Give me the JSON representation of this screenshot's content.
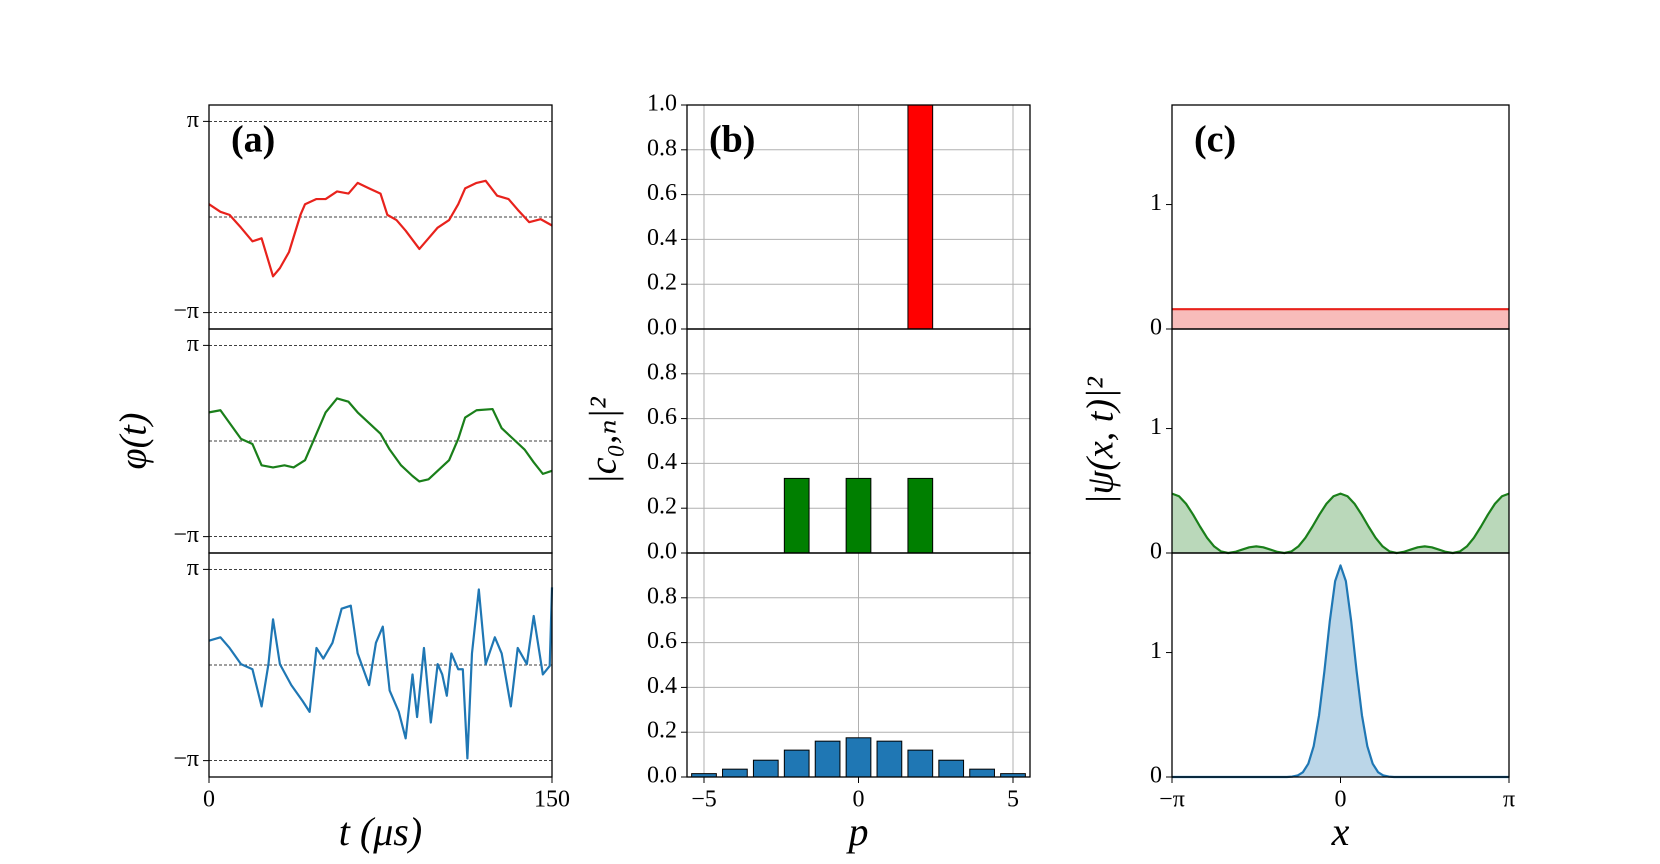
{
  "chart_data": [
    {
      "type": "line",
      "panel_label": "(a)",
      "xlabel": "t (μs)",
      "ylabel": "φ(t)",
      "xlim": [
        0,
        150
      ],
      "xticks": [
        0,
        150
      ],
      "ylim": [
        -3.68,
        3.68
      ],
      "yticks": [
        {
          "value": 3.1416,
          "label": "π"
        },
        {
          "value": -3.1416,
          "label": "−π"
        }
      ],
      "hlines": [
        3.1416,
        0,
        -3.1416
      ],
      "series": [
        {
          "color": "#e8221c",
          "x": [
            0,
            5,
            9,
            14,
            19,
            23,
            28,
            31,
            35,
            40,
            42,
            47,
            51,
            56,
            61,
            65,
            70,
            75,
            78,
            82,
            86,
            92,
            96,
            100,
            105,
            109,
            112,
            117,
            121,
            126,
            131,
            135,
            140,
            145,
            150
          ],
          "values": [
            0.42,
            0.17,
            0.07,
            -0.35,
            -0.8,
            -0.7,
            -1.95,
            -1.68,
            -1.15,
            0.07,
            0.42,
            0.59,
            0.59,
            0.84,
            0.77,
            1.12,
            0.94,
            0.77,
            0.07,
            -0.1,
            -0.45,
            -1.05,
            -0.7,
            -0.35,
            -0.1,
            0.42,
            0.94,
            1.12,
            1.19,
            0.7,
            0.59,
            0.24,
            -0.17,
            -0.07,
            -0.28
          ]
        },
        {
          "color": "#1a7f1a",
          "x": [
            0,
            5,
            9,
            14,
            19,
            23,
            28,
            33,
            37,
            42,
            47,
            51,
            56,
            61,
            65,
            70,
            75,
            79,
            84,
            89,
            92,
            96,
            100,
            105,
            109,
            112,
            117,
            124,
            128,
            133,
            138,
            142,
            146,
            150
          ],
          "values": [
            0.94,
            1.01,
            0.59,
            0.07,
            -0.1,
            -0.8,
            -0.87,
            -0.8,
            -0.87,
            -0.63,
            0.24,
            0.94,
            1.4,
            1.29,
            0.94,
            0.59,
            0.24,
            -0.28,
            -0.8,
            -1.15,
            -1.33,
            -1.26,
            -0.98,
            -0.63,
            0.07,
            0.77,
            1.01,
            1.05,
            0.42,
            0.07,
            -0.28,
            -0.7,
            -1.08,
            -0.98
          ]
        },
        {
          "color": "#1f77b4",
          "x": [
            0,
            5,
            9,
            14,
            19,
            23,
            26,
            28,
            31,
            36,
            41,
            44,
            47,
            50,
            54,
            58,
            62,
            65,
            70,
            73,
            76,
            79,
            83,
            86,
            89,
            91,
            94,
            97,
            100,
            102,
            104,
            106,
            109,
            111,
            113,
            115,
            118,
            121,
            125,
            128,
            132,
            135,
            139,
            142,
            146,
            149,
            150
          ],
          "values": [
            0.8,
            0.91,
            0.56,
            0.03,
            -0.14,
            -1.36,
            0.03,
            1.5,
            0.03,
            -0.66,
            -1.19,
            -1.54,
            0.56,
            0.21,
            0.73,
            1.85,
            1.95,
            0.38,
            -0.66,
            0.73,
            1.26,
            -0.84,
            -1.54,
            -2.41,
            -0.31,
            -1.71,
            0.56,
            -1.89,
            0.03,
            -0.31,
            -1.01,
            0.38,
            -0.14,
            -0.14,
            -3.07,
            0.38,
            2.48,
            0.03,
            0.91,
            0.38,
            -1.36,
            0.56,
            0.03,
            1.61,
            -0.31,
            -0.03,
            2.55
          ]
        }
      ]
    },
    {
      "type": "bar",
      "panel_label": "(b)",
      "xlabel": "p",
      "ylabel": "|c₀,ₙ|²",
      "grid": true,
      "xlim": [
        -5.55,
        5.55
      ],
      "xticks": [
        {
          "value": -5,
          "label": "−5"
        },
        0,
        5
      ],
      "ylim": [
        0,
        1
      ],
      "yticks": [
        {
          "value": 0,
          "label": "0.0"
        },
        {
          "value": 0.2,
          "label": "0.2"
        },
        {
          "value": 0.4,
          "label": "0.4"
        },
        {
          "value": 0.6,
          "label": "0.6"
        },
        {
          "value": 0.8,
          "label": "0.8"
        },
        {
          "value": 1,
          "label": "1.0"
        }
      ],
      "x": [
        -5,
        -4,
        -3,
        -2,
        -1,
        0,
        1,
        2,
        3,
        4,
        5
      ],
      "series": [
        {
          "color": "#ff0000",
          "values": [
            0,
            0,
            0,
            0,
            0,
            0,
            0,
            1,
            0,
            0,
            0
          ]
        },
        {
          "color": "#007f00",
          "values": [
            0,
            0,
            0,
            0.333,
            0,
            0.333,
            0,
            0.333,
            0,
            0,
            0
          ]
        },
        {
          "color": "#1f77b4",
          "values": [
            0.015,
            0.035,
            0.075,
            0.12,
            0.16,
            0.175,
            0.16,
            0.12,
            0.075,
            0.035,
            0.015
          ]
        }
      ]
    },
    {
      "type": "area",
      "panel_label": "(c)",
      "xlabel": "x",
      "ylabel": "|ψ(x, t)|²",
      "xlim": [
        -3.1416,
        3.1416
      ],
      "xticks": [
        {
          "value": -3.1416,
          "label": "−π"
        },
        0,
        {
          "value": 3.1416,
          "label": "π"
        }
      ],
      "ylim": [
        0,
        1.8
      ],
      "yticks": [
        0,
        1
      ],
      "series": [
        {
          "color": "#e8221c",
          "x": [
            -3.1416,
            3.1416
          ],
          "values": [
            0.159,
            0.159
          ]
        },
        {
          "color": "#1a7f1a",
          "x": [
            -3.1416,
            -3.0107,
            -2.8798,
            -2.7489,
            -2.618,
            -2.4871,
            -2.3562,
            -2.2253,
            -2.0944,
            -1.9635,
            -1.8326,
            -1.7017,
            -1.5708,
            -1.4399,
            -1.309,
            -1.1781,
            -1.0472,
            -0.9163,
            -0.7854,
            -0.6545,
            -0.5236,
            -0.3927,
            -0.2618,
            -0.1309,
            0,
            0.1309,
            0.2618,
            0.3927,
            0.5236,
            0.6545,
            0.7854,
            0.9163,
            1.0472,
            1.1781,
            1.309,
            1.4399,
            1.5708,
            1.7017,
            1.8326,
            1.9635,
            2.0944,
            2.2253,
            2.3562,
            2.4871,
            2.618,
            2.7489,
            2.8798,
            3.0107,
            3.1416
          ],
          "values": [
            0.477,
            0.456,
            0.396,
            0.309,
            0.212,
            0.122,
            0.053,
            0.012,
            0,
            0.009,
            0.028,
            0.046,
            0.053,
            0.046,
            0.028,
            0.009,
            0,
            0.012,
            0.053,
            0.122,
            0.212,
            0.309,
            0.396,
            0.456,
            0.477,
            0.456,
            0.396,
            0.309,
            0.212,
            0.122,
            0.053,
            0.012,
            0,
            0.009,
            0.028,
            0.046,
            0.053,
            0.046,
            0.028,
            0.009,
            0,
            0.012,
            0.053,
            0.122,
            0.212,
            0.309,
            0.396,
            0.456,
            0.477
          ]
        },
        {
          "color": "#1f77b4",
          "x": [
            -3.1416,
            -1,
            -0.9,
            -0.8,
            -0.7,
            -0.6,
            -0.5,
            -0.4,
            -0.3,
            -0.2,
            -0.1,
            0,
            0.1,
            0.2,
            0.3,
            0.4,
            0.5,
            0.6,
            0.7,
            0.8,
            0.9,
            1,
            3.1416
          ],
          "values": [
            0,
            0,
            0.003,
            0.012,
            0.039,
            0.107,
            0.248,
            0.496,
            0.851,
            1.25,
            1.574,
            1.7,
            1.574,
            1.25,
            0.851,
            0.496,
            0.248,
            0.107,
            0.039,
            0.012,
            0.003,
            0,
            0
          ]
        }
      ]
    }
  ]
}
